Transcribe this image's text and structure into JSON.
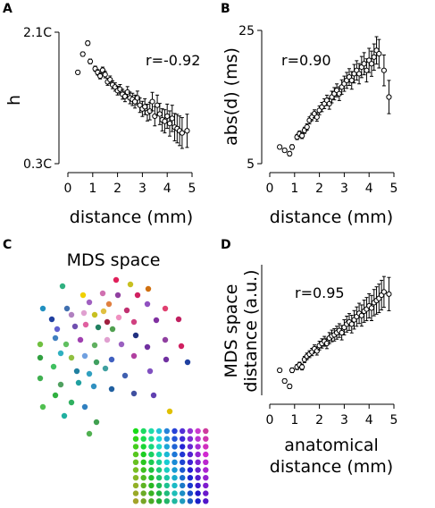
{
  "figure": {
    "panels": [
      {
        "letter": "A",
        "r_text": "r=-0.92",
        "ylabel": "h",
        "xlabel": "distance (mm)"
      },
      {
        "letter": "B",
        "r_text": "r=0.90",
        "ylabel": "abs(d) (ms)",
        "xlabel": "distance (mm)"
      },
      {
        "letter": "C",
        "title": "MDS space"
      },
      {
        "letter": "D",
        "r_text": "r=0.95",
        "ylabel_line1": "MDS space",
        "ylabel_line2": "distance (a.u.)",
        "xlabel_line1": "anatomical",
        "xlabel_line2": "distance (mm)"
      }
    ],
    "x_ticks": [
      "0",
      "1",
      "2",
      "3",
      "4",
      "5"
    ],
    "a_y_ticks": [
      "2.1C",
      "0.3C"
    ],
    "b_y_ticks": [
      "25",
      "5"
    ]
  },
  "chart_data": [
    {
      "type": "scatter",
      "panel": "A",
      "xlabel": "distance (mm)",
      "ylabel": "h",
      "xlim": [
        0,
        5
      ],
      "ylim": [
        0.3,
        2.1
      ],
      "y_unit_label": "C",
      "annotation": "r=-0.92",
      "error_bars": true,
      "x": [
        0.4,
        0.6,
        0.8,
        0.9,
        1.1,
        1.2,
        1.3,
        1.4,
        1.5,
        1.6,
        1.7,
        1.8,
        1.9,
        2.0,
        2.1,
        2.2,
        2.3,
        2.4,
        2.5,
        2.6,
        2.7,
        2.8,
        2.9,
        3.0,
        3.1,
        3.2,
        3.3,
        3.4,
        3.5,
        3.6,
        3.7,
        3.8,
        3.9,
        4.0,
        4.1,
        4.2,
        4.3,
        4.4,
        4.5,
        4.6,
        4.8
      ],
      "y": [
        1.55,
        1.8,
        1.95,
        1.7,
        1.6,
        1.55,
        1.5,
        1.58,
        1.52,
        1.42,
        1.45,
        1.38,
        1.35,
        1.3,
        1.32,
        1.25,
        1.22,
        1.28,
        1.2,
        1.18,
        1.15,
        1.2,
        1.1,
        1.05,
        1.08,
        1.0,
        1.02,
        1.15,
        0.95,
        1.1,
        0.98,
        0.9,
        0.88,
        0.95,
        0.85,
        0.92,
        0.8,
        0.78,
        0.75,
        0.72,
        0.75
      ]
    },
    {
      "type": "scatter",
      "panel": "B",
      "xlabel": "distance (mm)",
      "ylabel": "abs(d) (ms)",
      "xlim": [
        0,
        5
      ],
      "ylim": [
        5,
        25
      ],
      "annotation": "r=0.90",
      "error_bars": true,
      "x": [
        0.4,
        0.6,
        0.8,
        0.9,
        1.1,
        1.2,
        1.3,
        1.4,
        1.5,
        1.6,
        1.7,
        1.8,
        1.9,
        2.0,
        2.1,
        2.2,
        2.3,
        2.4,
        2.5,
        2.6,
        2.7,
        2.8,
        2.9,
        3.0,
        3.1,
        3.2,
        3.3,
        3.4,
        3.5,
        3.6,
        3.7,
        3.8,
        3.9,
        4.0,
        4.1,
        4.2,
        4.3,
        4.4,
        4.6,
        4.8
      ],
      "y": [
        7.5,
        7.0,
        6.5,
        7.5,
        9.0,
        9.5,
        9.2,
        10.0,
        10.5,
        11.5,
        12.0,
        12.5,
        12.0,
        13.0,
        13.5,
        14.0,
        14.5,
        14.0,
        15.0,
        15.5,
        16.0,
        15.5,
        16.5,
        17.0,
        17.5,
        18.0,
        17.5,
        18.5,
        19.0,
        18.5,
        19.5,
        20.0,
        19.0,
        20.5,
        20.0,
        21.0,
        22.0,
        21.5,
        19.0,
        15.0
      ]
    },
    {
      "type": "scatter",
      "panel": "C",
      "title": "MDS space",
      "legend": "color grid",
      "note": "points colored by anatomical position; legend is a color grid"
    },
    {
      "type": "scatter",
      "panel": "D",
      "xlabel": "anatomical distance (mm)",
      "ylabel": "MDS space distance (a.u.)",
      "xlim": [
        0,
        5
      ],
      "annotation": "r=0.95",
      "error_bars": true,
      "x": [
        0.4,
        0.6,
        0.8,
        0.9,
        1.1,
        1.2,
        1.3,
        1.4,
        1.5,
        1.6,
        1.7,
        1.8,
        1.9,
        2.0,
        2.1,
        2.2,
        2.3,
        2.4,
        2.5,
        2.6,
        2.7,
        2.8,
        2.9,
        3.0,
        3.1,
        3.2,
        3.3,
        3.4,
        3.5,
        3.6,
        3.7,
        3.8,
        3.9,
        4.0,
        4.1,
        4.2,
        4.3,
        4.4,
        4.5,
        4.6,
        4.8
      ],
      "y": [
        0.15,
        0.05,
        0.0,
        0.15,
        0.18,
        0.2,
        0.18,
        0.25,
        0.28,
        0.3,
        0.32,
        0.35,
        0.33,
        0.38,
        0.4,
        0.42,
        0.4,
        0.45,
        0.47,
        0.48,
        0.5,
        0.52,
        0.5,
        0.55,
        0.58,
        0.6,
        0.58,
        0.62,
        0.65,
        0.68,
        0.66,
        0.7,
        0.72,
        0.75,
        0.73,
        0.78,
        0.8,
        0.82,
        0.85,
        0.88,
        0.86
      ]
    }
  ]
}
